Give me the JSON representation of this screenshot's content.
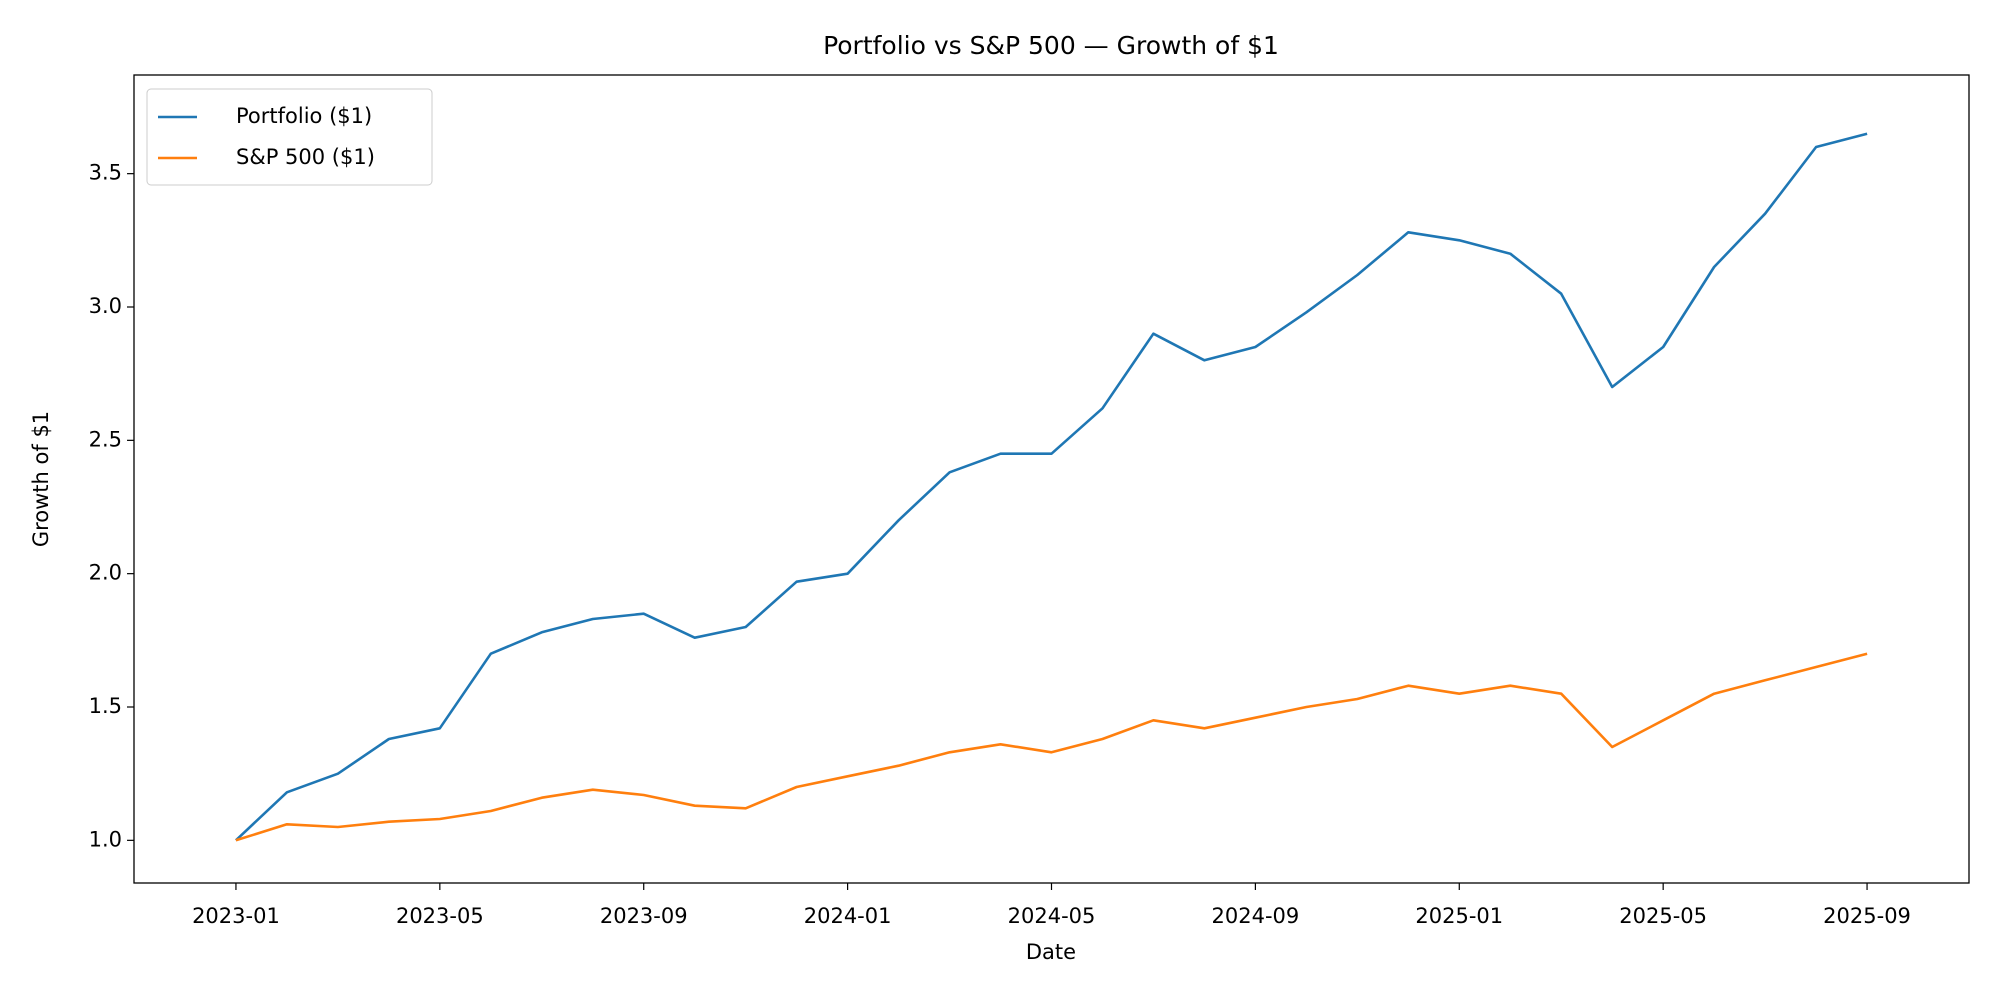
{
  "chart_data": {
    "type": "line",
    "title": "Portfolio vs S&P 500 — Growth of $1",
    "x_label": "Date",
    "y_label": "Growth of $1",
    "x": [
      "2023-01",
      "2023-02",
      "2023-03",
      "2023-04",
      "2023-05",
      "2023-06",
      "2023-07",
      "2023-08",
      "2023-09",
      "2023-10",
      "2023-11",
      "2023-12",
      "2024-01",
      "2024-02",
      "2024-03",
      "2024-04",
      "2024-05",
      "2024-06",
      "2024-07",
      "2024-08",
      "2024-09",
      "2024-10",
      "2024-11",
      "2024-12",
      "2025-01",
      "2025-02",
      "2025-03",
      "2025-04",
      "2025-05",
      "2025-06",
      "2025-07",
      "2025-08",
      "2025-09"
    ],
    "series": [
      {
        "name": "Portfolio ($1)",
        "color": "#1f77b4",
        "values": [
          1.0,
          1.18,
          1.25,
          1.38,
          1.42,
          1.7,
          1.78,
          1.83,
          1.85,
          1.76,
          1.8,
          1.97,
          2.0,
          2.2,
          2.38,
          2.45,
          2.45,
          2.62,
          2.9,
          2.8,
          2.85,
          2.98,
          3.12,
          3.28,
          3.25,
          3.2,
          3.05,
          2.7,
          2.85,
          3.15,
          3.35,
          3.6,
          3.65
        ]
      },
      {
        "name": "S&P 500 ($1)",
        "color": "#ff7f0e",
        "values": [
          1.0,
          1.06,
          1.05,
          1.07,
          1.08,
          1.11,
          1.16,
          1.19,
          1.17,
          1.13,
          1.12,
          1.2,
          1.24,
          1.28,
          1.33,
          1.36,
          1.33,
          1.38,
          1.45,
          1.42,
          1.46,
          1.5,
          1.53,
          1.58,
          1.55,
          1.58,
          1.55,
          1.35,
          1.45,
          1.55,
          1.6,
          1.65,
          1.7
        ]
      }
    ],
    "xlim": [
      "2022-11",
      "2025-11"
    ],
    "xticks": [
      "2023-01",
      "2023-05",
      "2023-09",
      "2024-01",
      "2024-05",
      "2024-09",
      "2025-01",
      "2025-05",
      "2025-09"
    ],
    "ylim": [
      0.84,
      3.87
    ],
    "yticks": [
      {
        "value": 1,
        "label": "1.0"
      },
      1.5,
      {
        "value": 2,
        "label": "2.0"
      },
      2.5,
      {
        "value": 3,
        "label": "3.0"
      },
      3.5
    ],
    "legend": "upper left",
    "grid": false
  }
}
